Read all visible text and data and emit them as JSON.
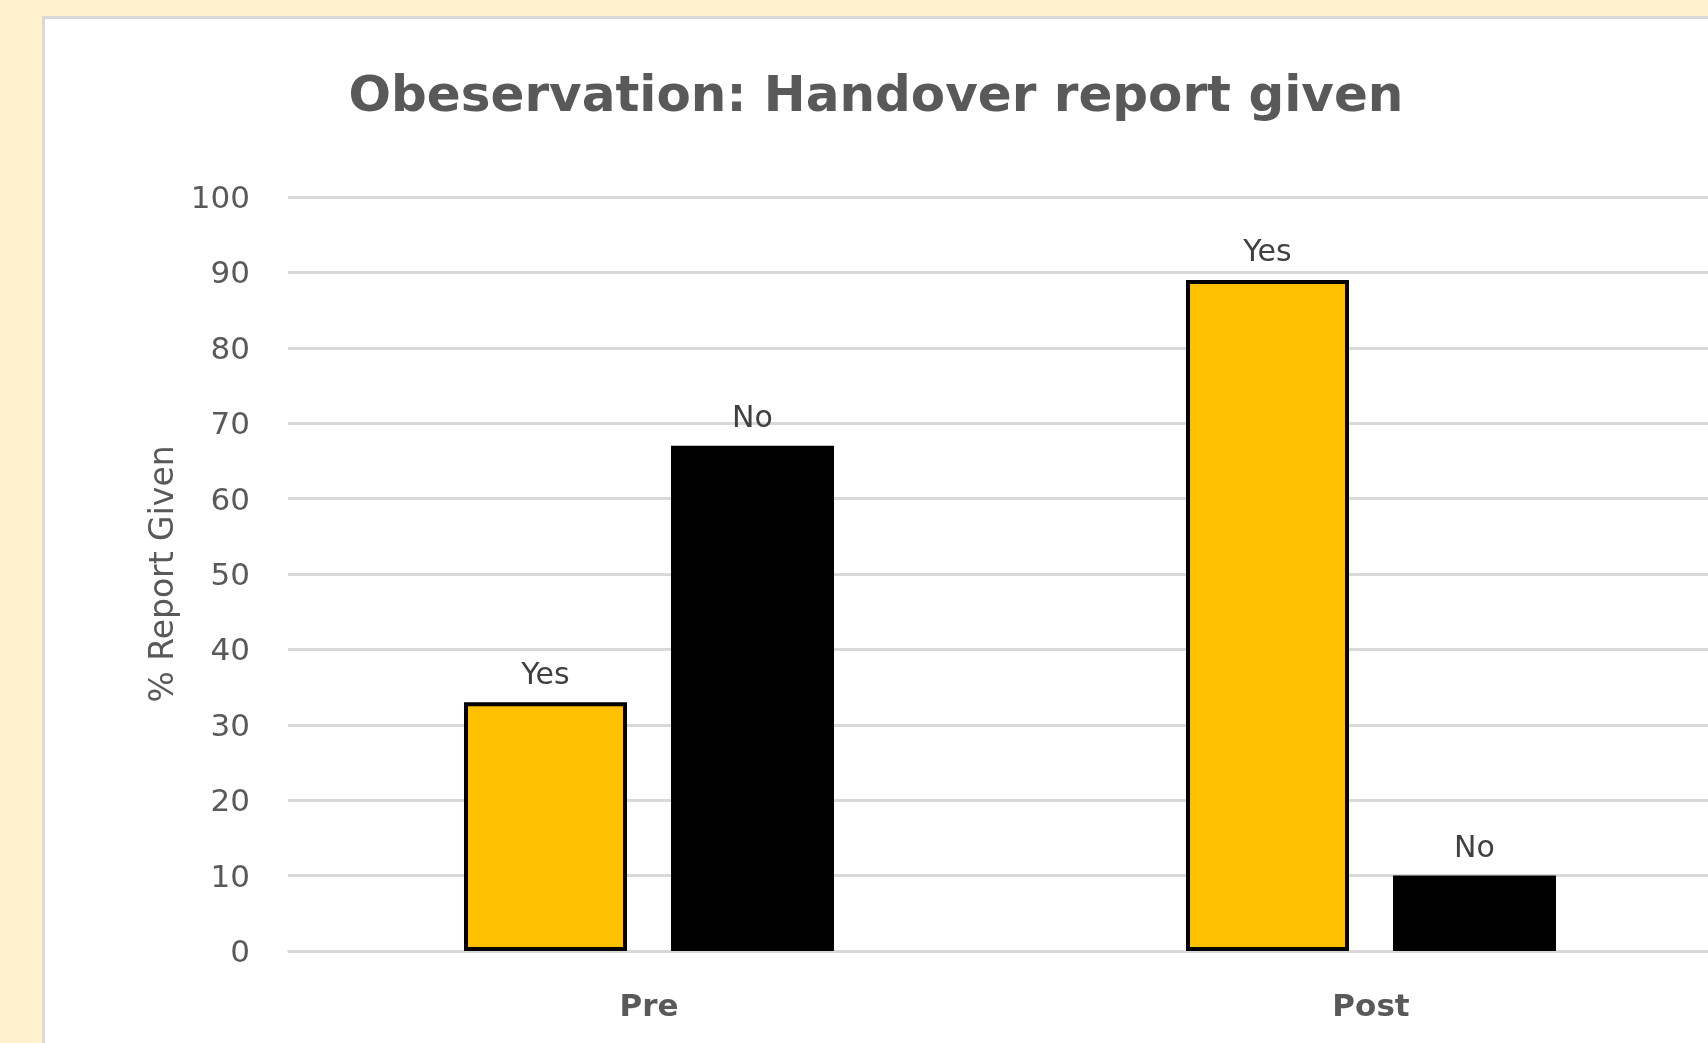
{
  "chart_data": {
    "type": "bar",
    "title": "Obeservation: Handover report given",
    "ylabel": "% Report Given",
    "categories": [
      "Pre",
      "Post"
    ],
    "series": [
      {
        "name": "Yes",
        "color": "#ffc000",
        "values": [
          33,
          89
        ]
      },
      {
        "name": "No",
        "color": "#000000",
        "values": [
          67,
          10
        ]
      }
    ],
    "ylim": [
      0,
      100
    ],
    "yticks": [
      0,
      10,
      20,
      30,
      40,
      50,
      60,
      70,
      80,
      90,
      100
    ],
    "grid": "y"
  }
}
